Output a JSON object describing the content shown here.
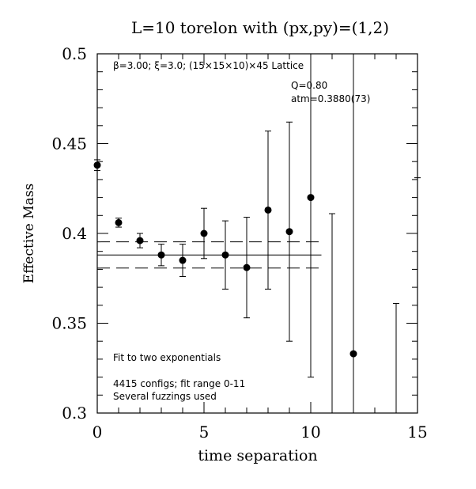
{
  "chart_data": {
    "type": "scatter",
    "title": "L=10 torelon with (px,py)=(1,2)",
    "xlabel": "time separation",
    "ylabel": "Effective Mass",
    "xlim": [
      0,
      15
    ],
    "ylim": [
      0.3,
      0.5
    ],
    "x_ticks": [
      "0",
      "5",
      "10",
      "15"
    ],
    "y_ticks": [
      "0.3",
      "0.35",
      "0.4",
      "0.45",
      "0.5"
    ],
    "annotations": {
      "lattice": "β=3.00; ξ=3.0; (15×15×10)×45 Lattice",
      "q": "Q=0.80",
      "mass": "atm=0.3880(73)",
      "fit_type": "Fit to two exponentials",
      "configs": "4415 configs; fit range 0-11",
      "fuzzings": "Several fuzzings used"
    },
    "points": [
      {
        "x": 0,
        "y": 0.438,
        "err": 0.003
      },
      {
        "x": 1,
        "y": 0.406,
        "err": 0.0025
      },
      {
        "x": 2,
        "y": 0.396,
        "err": 0.004
      },
      {
        "x": 3,
        "y": 0.388,
        "err": 0.006
      },
      {
        "x": 4,
        "y": 0.385,
        "err": 0.009
      },
      {
        "x": 5,
        "y": 0.4,
        "err": 0.014
      },
      {
        "x": 6,
        "y": 0.388,
        "err": 0.019
      },
      {
        "x": 7,
        "y": 0.381,
        "err": 0.028
      },
      {
        "x": 8,
        "y": 0.413,
        "err": 0.044
      },
      {
        "x": 9,
        "y": 0.401,
        "err": 0.061
      },
      {
        "x": 10,
        "y": 0.42,
        "err": 0.1
      },
      {
        "x": 11,
        "y": null,
        "err_low": 0.3,
        "err_high": 0.411
      },
      {
        "x": 12,
        "y": 0.333,
        "err": 0.18
      },
      {
        "x": 14,
        "y": null,
        "err_low": 0.3,
        "err_high": 0.361
      },
      {
        "x": 15,
        "y": null,
        "err_low": 0.3,
        "err_high": 0.431
      }
    ],
    "fit": {
      "value": 0.388,
      "err": 0.0073,
      "x_range": [
        0,
        10.5
      ]
    }
  }
}
